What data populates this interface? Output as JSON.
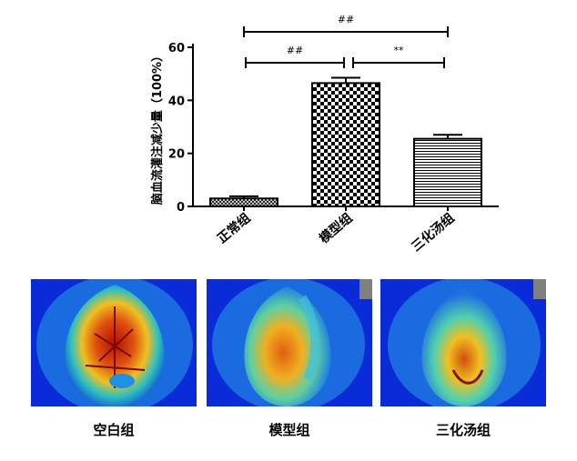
{
  "chart_data": {
    "type": "bar",
    "categories": [
      "正常组",
      "模型组",
      "三化汤组"
    ],
    "values": [
      3,
      46.5,
      25.5
    ],
    "errors": [
      0.8,
      2.0,
      1.5
    ],
    "patterns": [
      "crosshatch",
      "checker",
      "horizontal-lines"
    ],
    "ylabel": "脑血流灌注减少量（100%）",
    "ylim": [
      0,
      60
    ],
    "yticks": [
      0,
      20,
      40,
      60
    ],
    "significance": [
      {
        "from": 0,
        "to": 2,
        "label": "##"
      },
      {
        "from": 0,
        "to": 1,
        "label": "##"
      },
      {
        "from": 1,
        "to": 2,
        "label": "**"
      }
    ]
  },
  "images": {
    "panels": [
      {
        "caption": "空白组",
        "colormap": "laser speckle perfusion (jet)"
      },
      {
        "caption": "模型组",
        "colormap": "laser speckle perfusion (jet)"
      },
      {
        "caption": "三化汤组",
        "colormap": "laser speckle perfusion (jet)"
      }
    ]
  }
}
